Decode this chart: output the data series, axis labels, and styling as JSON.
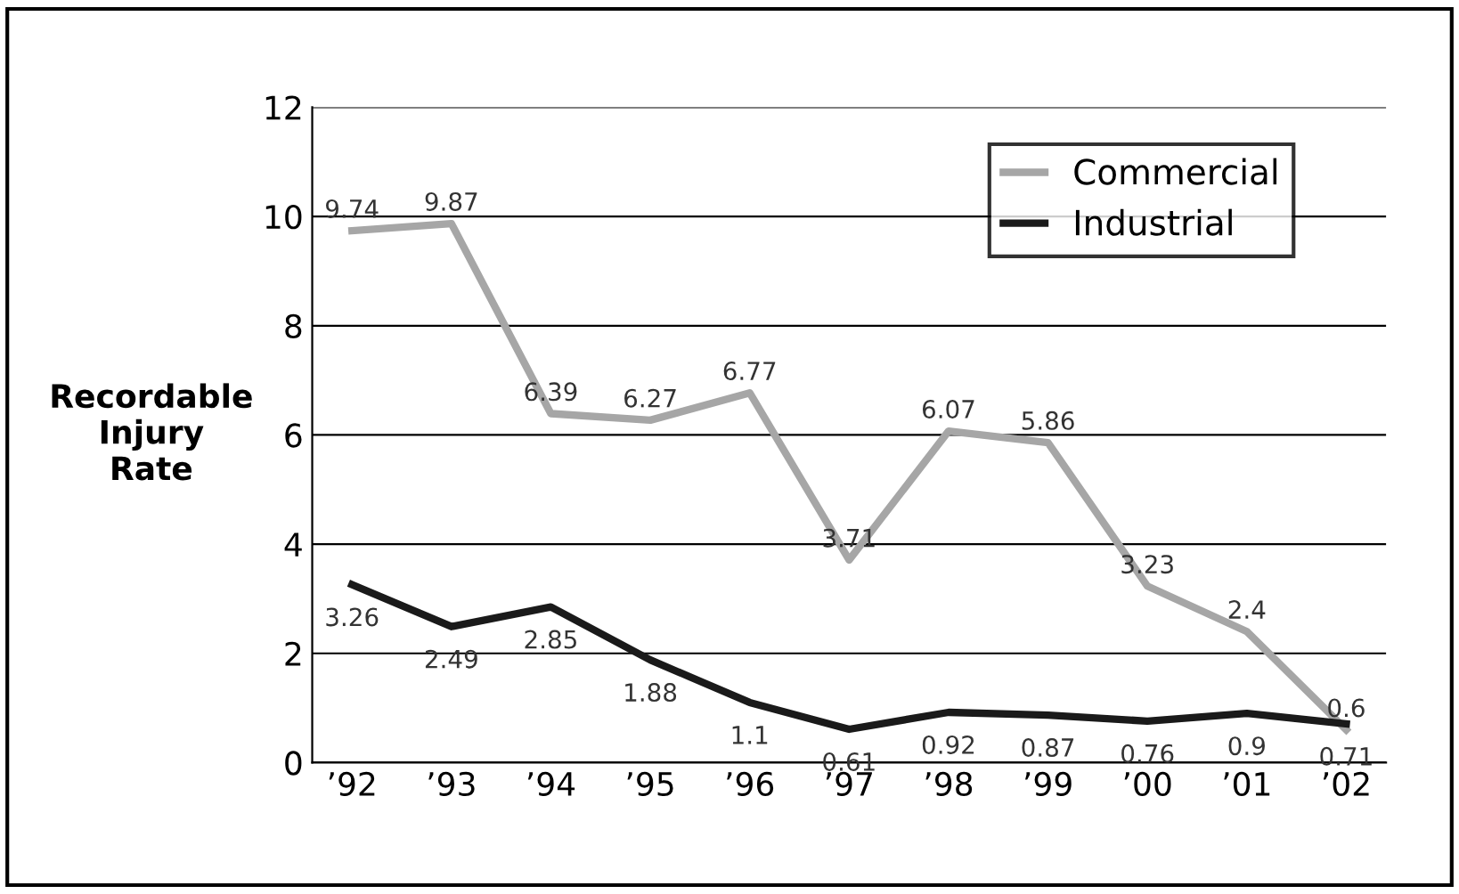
{
  "chart_data": {
    "type": "line",
    "ylabel": "Recordable Injury Rate",
    "categories": [
      "’92",
      "’93",
      "’94",
      "’95",
      "’96",
      "’97",
      "’98",
      "’99",
      "’00",
      "’01",
      "’02"
    ],
    "series": [
      {
        "name": "Commercial",
        "color": "#a6a6a6",
        "values": [
          9.74,
          9.87,
          6.39,
          6.27,
          6.77,
          3.71,
          6.07,
          5.86,
          3.23,
          2.4,
          0.6
        ]
      },
      {
        "name": "Industrial",
        "color": "#1a1a1a",
        "values": [
          3.26,
          2.49,
          2.85,
          1.88,
          1.1,
          0.61,
          0.92,
          0.87,
          0.76,
          0.9,
          0.71
        ]
      }
    ],
    "ylim": [
      0,
      12
    ],
    "yticks": [
      0,
      2,
      4,
      6,
      8,
      10,
      12
    ],
    "grid": "y",
    "legend": "top right",
    "data_labels": true,
    "marker": "none",
    "line_style": "solid"
  }
}
